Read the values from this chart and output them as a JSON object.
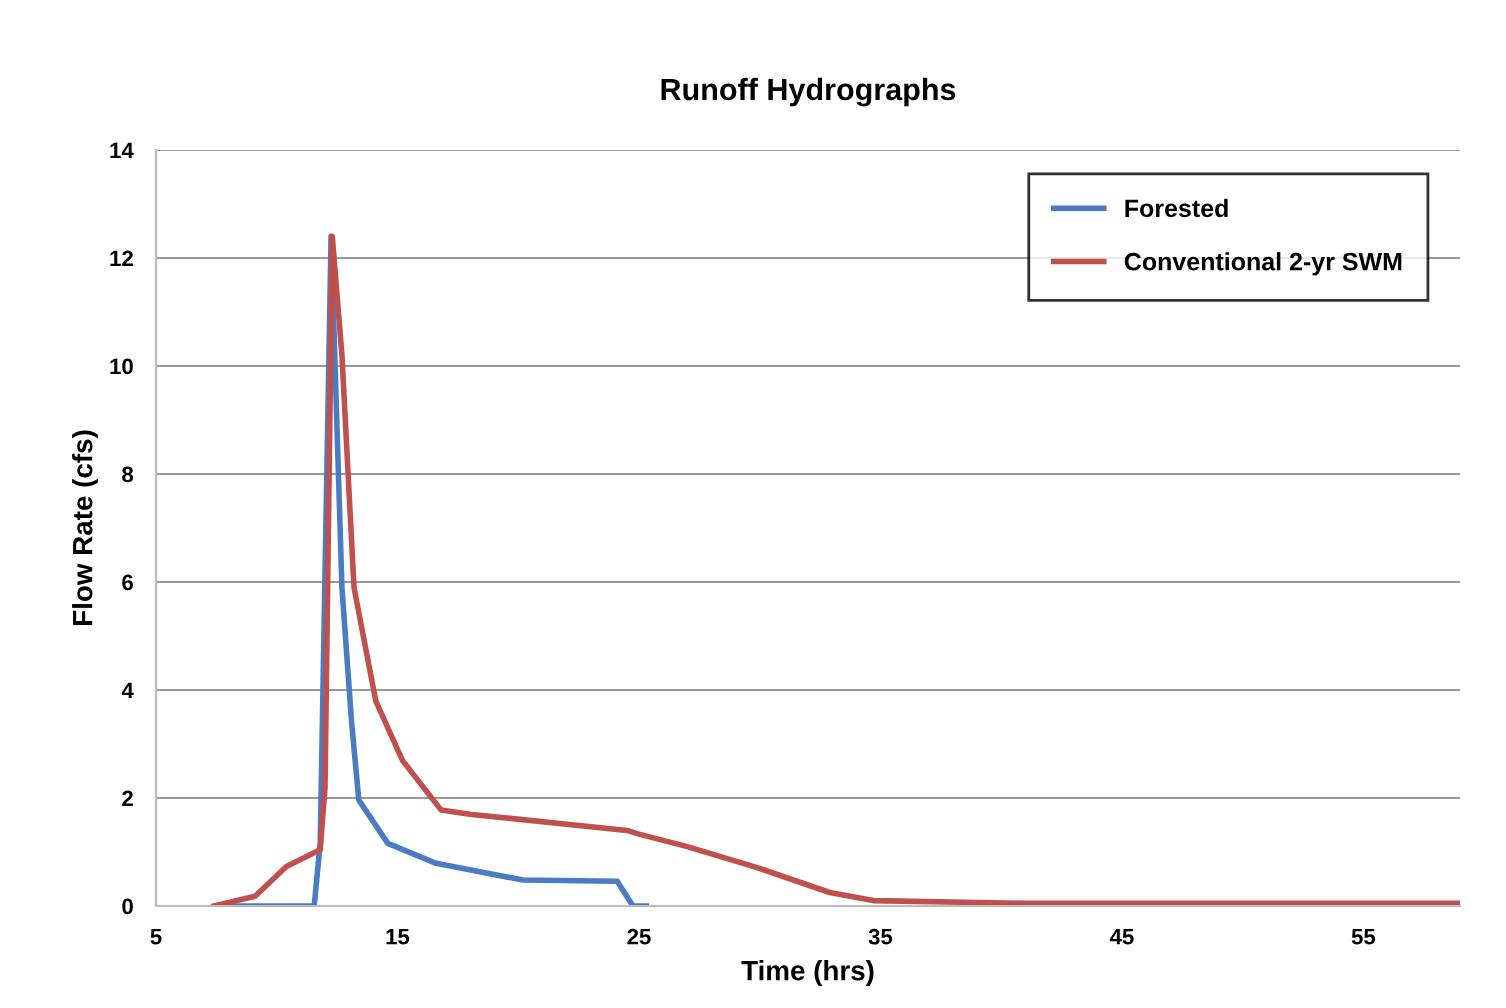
{
  "chart_data": {
    "type": "line",
    "title": "Runoff Hydrographs",
    "xlabel": "Time (hrs)",
    "ylabel": "Flow Rate (cfs)",
    "xlim": [
      5,
      59
    ],
    "xticks": [
      5,
      15,
      25,
      35,
      45,
      55
    ],
    "ylim": [
      0,
      14
    ],
    "yticks": [
      0,
      2,
      4,
      6,
      8,
      10,
      12,
      14
    ],
    "grid": "y",
    "legend": "top right",
    "marker": "none",
    "line_style": "solid",
    "series": [
      {
        "name": "Forested",
        "color": "#4a7cc4",
        "x": [
          7.5,
          11.55,
          11.8,
          12.25,
          12.7,
          13.1,
          13.4,
          14.6,
          16.6,
          20.2,
          24.1,
          24.75,
          25.3
        ],
        "values": [
          0,
          0,
          1.16,
          12.4,
          5.9,
          3.4,
          1.96,
          1.16,
          0.79,
          0.48,
          0.46,
          0,
          0
        ]
      },
      {
        "name": "Conventional 2-yr SWM",
        "color": "#c0504d",
        "x": [
          7.4,
          9.1,
          10.4,
          11.8,
          12.0,
          12.3,
          12.7,
          13.2,
          14.1,
          15.2,
          16.8,
          18,
          24.5,
          25,
          27,
          29.9,
          32.9,
          34.7,
          41,
          58.9
        ],
        "values": [
          0,
          0.18,
          0.73,
          1.04,
          2.2,
          12.4,
          10.2,
          5.9,
          3.8,
          2.7,
          1.78,
          1.7,
          1.4,
          1.33,
          1.1,
          0.71,
          0.25,
          0.1,
          0.05,
          0.05
        ]
      }
    ]
  }
}
